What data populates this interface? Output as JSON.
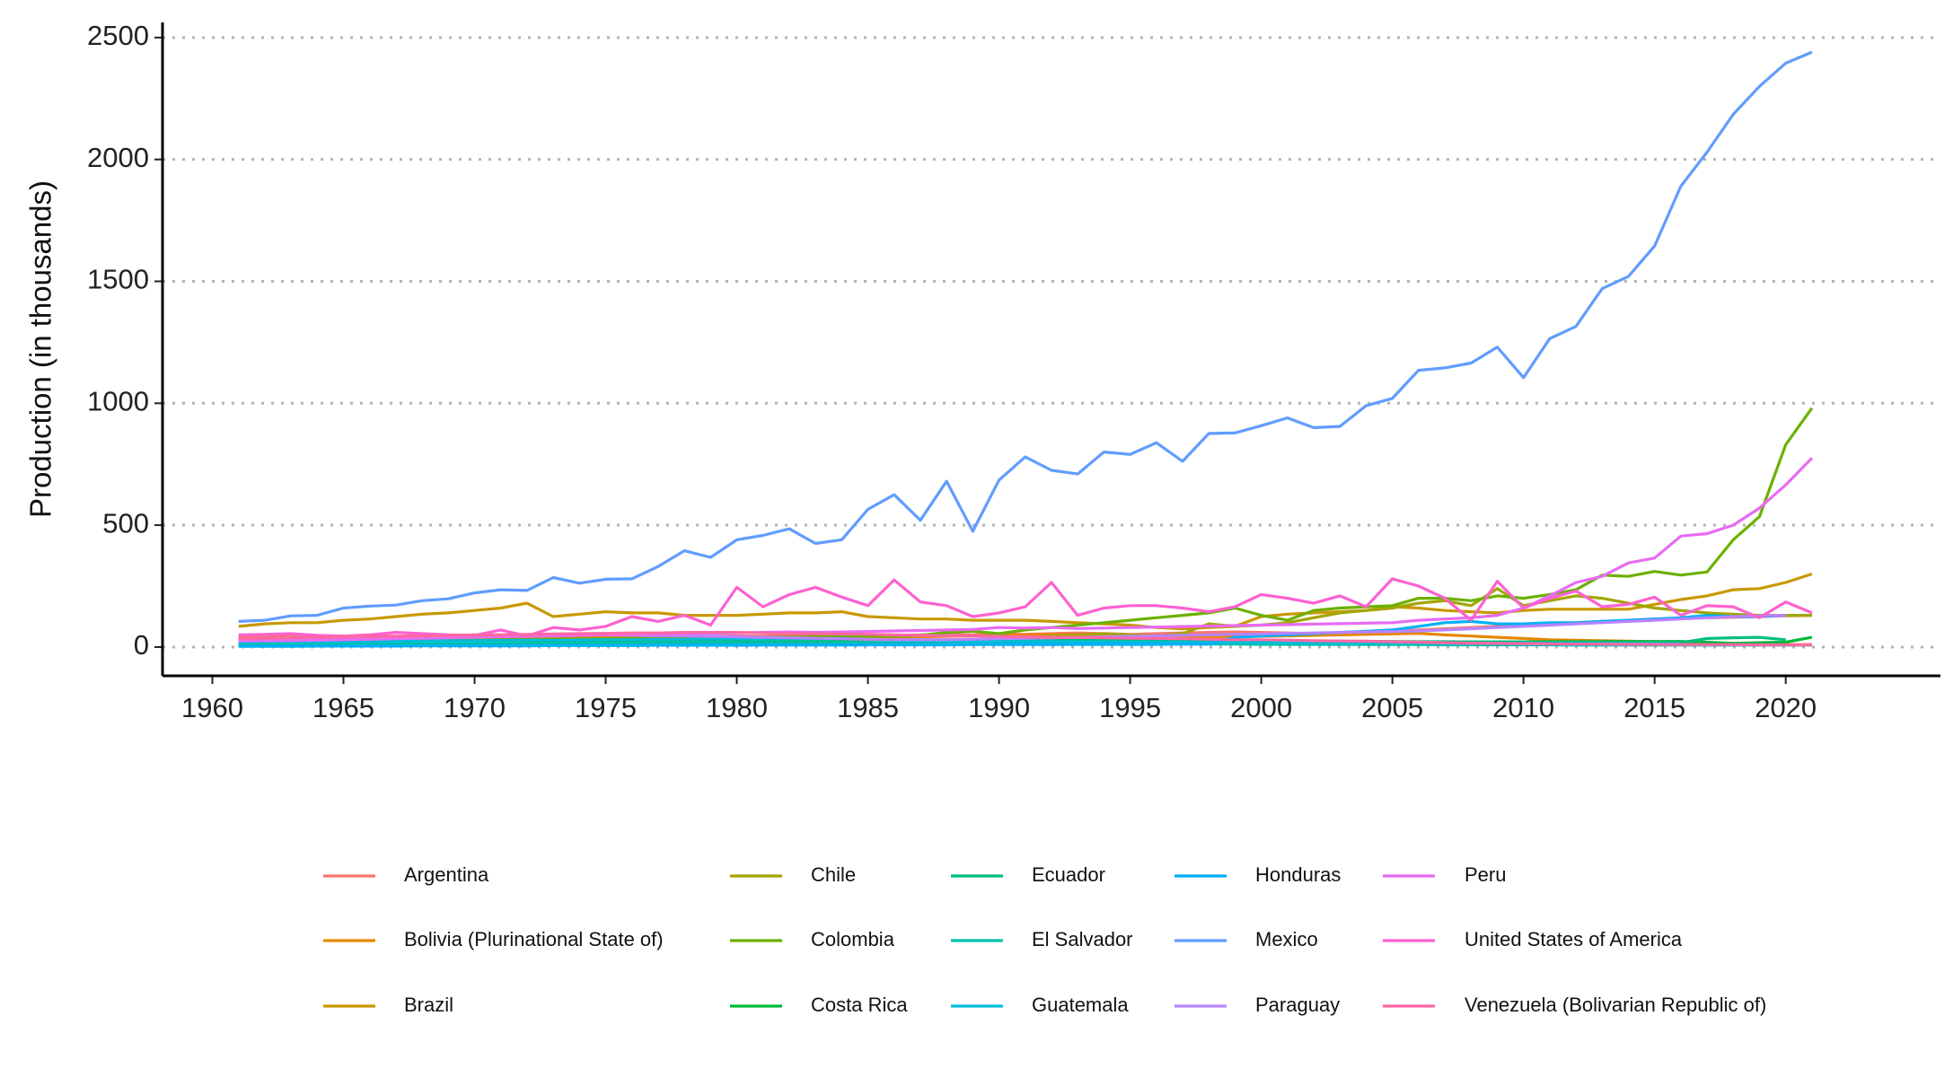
{
  "chart_data": {
    "type": "line",
    "y_label": "Production (in thousands)",
    "x": [
      1961,
      1962,
      1963,
      1964,
      1965,
      1966,
      1967,
      1968,
      1969,
      1970,
      1971,
      1972,
      1973,
      1974,
      1975,
      1976,
      1977,
      1978,
      1979,
      1980,
      1981,
      1982,
      1983,
      1984,
      1985,
      1986,
      1987,
      1988,
      1989,
      1990,
      1991,
      1992,
      1993,
      1994,
      1995,
      1996,
      1997,
      1998,
      1999,
      2000,
      2001,
      2002,
      2003,
      2004,
      2005,
      2006,
      2007,
      2008,
      2009,
      2010,
      2011,
      2012,
      2013,
      2014,
      2015,
      2016,
      2017,
      2018,
      2019,
      2020,
      2021
    ],
    "xlim": [
      1958.1,
      2025.9
    ],
    "xticks": [
      1960,
      1965,
      1970,
      1975,
      1980,
      1985,
      1990,
      1995,
      2000,
      2005,
      2010,
      2015,
      2020
    ],
    "ylim": [
      -118,
      2562
    ],
    "yticks": [
      0,
      500,
      1000,
      1500,
      2000,
      2500
    ],
    "grid": true,
    "legend": "bottom",
    "series": [
      {
        "name": "Argentina",
        "color": "#F8766D",
        "values": [
          40,
          42,
          45,
          40,
          38,
          40,
          42,
          44,
          40,
          45,
          48,
          42,
          40,
          44,
          46,
          42,
          40,
          42,
          44,
          46,
          45,
          48,
          50,
          46,
          44,
          48,
          50,
          52,
          50,
          55,
          52,
          55,
          58,
          55,
          52,
          55,
          58,
          60,
          62,
          60,
          58,
          55,
          60,
          62,
          65,
          70,
          75,
          80,
          85,
          90,
          95,
          100,
          105,
          110,
          115,
          118,
          120,
          122,
          125,
          128,
          130
        ]
      },
      {
        "name": "Bolivia (Plurinational State of)",
        "color": "#E58700",
        "values": [
          20,
          22,
          24,
          25,
          26,
          28,
          30,
          30,
          32,
          34,
          35,
          36,
          38,
          38,
          40,
          40,
          38,
          36,
          35,
          34,
          34,
          35,
          36,
          37,
          38,
          40,
          42,
          44,
          46,
          48,
          50,
          52,
          50,
          48,
          46,
          44,
          42,
          40,
          42,
          44,
          46,
          48,
          50,
          52,
          54,
          56,
          50,
          45,
          40,
          35,
          30,
          28,
          26,
          24,
          22,
          20,
          18,
          15,
          12,
          10,
          10
        ]
      },
      {
        "name": "Brazil",
        "color": "#C99800",
        "values": [
          85,
          95,
          100,
          100,
          110,
          115,
          125,
          135,
          140,
          150,
          160,
          180,
          125,
          135,
          145,
          140,
          140,
          130,
          130,
          130,
          135,
          140,
          140,
          145,
          125,
          120,
          115,
          115,
          110,
          110,
          110,
          105,
          100,
          95,
          90,
          80,
          75,
          80,
          85,
          125,
          135,
          140,
          145,
          150,
          165,
          160,
          150,
          145,
          140,
          150,
          155,
          155,
          155,
          155,
          175,
          195,
          210,
          235,
          240,
          265,
          300
        ]
      },
      {
        "name": "Chile",
        "color": "#A3A500",
        "values": [
          10,
          10,
          11,
          11,
          12,
          12,
          13,
          13,
          14,
          14,
          15,
          15,
          16,
          16,
          17,
          17,
          18,
          18,
          19,
          20,
          20,
          21,
          22,
          23,
          24,
          25,
          26,
          28,
          30,
          35,
          40,
          45,
          50,
          55,
          50,
          45,
          55,
          95,
          85,
          90,
          100,
          120,
          140,
          150,
          160,
          180,
          190,
          170,
          240,
          170,
          190,
          210,
          200,
          180,
          160,
          150,
          140,
          135,
          130,
          130,
          130
        ]
      },
      {
        "name": "Colombia",
        "color": "#6BB100",
        "values": [
          20,
          21,
          22,
          23,
          24,
          25,
          26,
          27,
          28,
          30,
          30,
          31,
          32,
          33,
          34,
          35,
          36,
          37,
          38,
          40,
          40,
          41,
          42,
          43,
          44,
          45,
          48,
          60,
          65,
          55,
          70,
          80,
          90,
          100,
          110,
          120,
          130,
          140,
          160,
          130,
          110,
          150,
          160,
          165,
          170,
          200,
          200,
          190,
          210,
          200,
          215,
          235,
          295,
          290,
          310,
          295,
          308,
          440,
          535,
          830,
          980
        ]
      },
      {
        "name": "Costa Rica",
        "color": "#00BA38",
        "values": [
          5,
          5,
          6,
          6,
          6,
          7,
          7,
          7,
          8,
          8,
          8,
          9,
          9,
          9,
          10,
          10,
          10,
          11,
          11,
          11,
          12,
          12,
          12,
          13,
          13,
          13,
          14,
          14,
          14,
          15,
          15,
          15,
          16,
          16,
          16,
          17,
          17,
          17,
          18,
          18,
          18,
          19,
          19,
          19,
          20,
          20,
          20,
          21,
          21,
          21,
          22,
          22,
          22,
          23,
          23,
          23,
          20,
          15,
          18,
          20,
          40
        ]
      },
      {
        "name": "Ecuador",
        "color": "#00BF7D",
        "values": [
          15,
          16,
          17,
          18,
          18,
          19,
          20,
          20,
          21,
          22,
          22,
          23,
          23,
          24,
          24,
          25,
          25,
          26,
          26,
          27,
          27,
          28,
          28,
          28,
          29,
          29,
          30,
          30,
          30,
          30,
          30,
          30,
          28,
          28,
          27,
          27,
          26,
          26,
          25,
          25,
          25,
          24,
          24,
          23,
          23,
          22,
          22,
          21,
          21,
          20,
          20,
          20,
          19,
          19,
          18,
          18,
          35,
          38,
          40,
          30,
          null
        ]
      },
      {
        "name": "El Salvador",
        "color": "#00C0AF",
        "values": [
          10,
          10,
          11,
          11,
          12,
          12,
          12,
          13,
          13,
          13,
          14,
          14,
          14,
          15,
          15,
          15,
          16,
          16,
          16,
          16,
          17,
          17,
          17,
          17,
          16,
          16,
          16,
          15,
          15,
          15,
          14,
          14,
          14,
          13,
          13,
          13,
          12,
          12,
          12,
          11,
          11,
          11,
          10,
          10,
          10,
          10,
          9,
          9,
          9,
          9,
          9,
          8,
          8,
          8,
          8,
          8,
          8,
          8,
          8,
          8,
          8
        ]
      },
      {
        "name": "Guatemala",
        "color": "#00BCD8",
        "values": [
          20,
          21,
          22,
          22,
          23,
          24,
          24,
          25,
          26,
          26,
          27,
          28,
          28,
          29,
          30,
          30,
          31,
          32,
          32,
          33,
          33,
          34,
          34,
          35,
          30,
          28,
          26,
          25,
          24,
          23,
          22,
          22,
          21,
          21,
          20,
          20,
          20,
          19,
          19,
          19,
          18,
          18,
          18,
          17,
          17,
          17,
          16,
          16,
          16,
          15,
          15,
          15,
          14,
          14,
          14,
          14,
          null,
          null,
          null,
          null,
          null
        ]
      },
      {
        "name": "Honduras",
        "color": "#00B0F6",
        "values": [
          3,
          3,
          3,
          4,
          4,
          4,
          4,
          5,
          5,
          5,
          5,
          5,
          6,
          6,
          6,
          6,
          7,
          7,
          7,
          7,
          8,
          8,
          8,
          8,
          9,
          9,
          9,
          9,
          10,
          10,
          10,
          10,
          11,
          11,
          11,
          11,
          12,
          12,
          40,
          45,
          50,
          55,
          60,
          65,
          70,
          85,
          100,
          105,
          95,
          95,
          100,
          100,
          105,
          110,
          115,
          120,
          130,
          125,
          125,
          130,
          null
        ]
      },
      {
        "name": "Mexico",
        "color": "#619CFF",
        "values": [
          105,
          110,
          128,
          130,
          160,
          168,
          172,
          190,
          198,
          222,
          235,
          232,
          285,
          262,
          278,
          280,
          330,
          395,
          368,
          440,
          458,
          485,
          425,
          440,
          565,
          625,
          520,
          680,
          475,
          685,
          780,
          725,
          710,
          800,
          790,
          838,
          762,
          876,
          878,
          908,
          940,
          900,
          905,
          990,
          1020,
          1135,
          1145,
          1165,
          1230,
          1105,
          1265,
          1315,
          1470,
          1520,
          1645,
          1890,
          2030,
          2185,
          2300,
          2395,
          2440
        ]
      },
      {
        "name": "Paraguay",
        "color": "#B983FF",
        "values": [
          30,
          32,
          34,
          35,
          36,
          38,
          40,
          42,
          44,
          45,
          46,
          48,
          50,
          50,
          50,
          48,
          46,
          45,
          44,
          42,
          40,
          38,
          36,
          34,
          32,
          30,
          30,
          30,
          32,
          34,
          36,
          38,
          40,
          42,
          44,
          46,
          48,
          50,
          52,
          54,
          56,
          58,
          60,
          62,
          64,
          66,
          70,
          75,
          80,
          85,
          90,
          95,
          100,
          105,
          110,
          115,
          120,
          125,
          128,
          130,
          null
        ]
      },
      {
        "name": "Peru",
        "color": "#E76BF3",
        "values": [
          25,
          26,
          27,
          28,
          30,
          32,
          34,
          36,
          38,
          40,
          42,
          44,
          46,
          48,
          50,
          50,
          52,
          54,
          56,
          58,
          60,
          62,
          60,
          62,
          64,
          66,
          68,
          70,
          72,
          80,
          78,
          80,
          76,
          78,
          80,
          82,
          84,
          86,
          88,
          90,
          92,
          94,
          96,
          98,
          100,
          110,
          115,
          120,
          130,
          160,
          210,
          265,
          290,
          345,
          365,
          455,
          465,
          500,
          570,
          665,
          775
        ]
      },
      {
        "name": "United States of America",
        "color": "#FD61D1",
        "values": [
          50,
          52,
          55,
          48,
          45,
          50,
          60,
          55,
          50,
          48,
          70,
          45,
          80,
          70,
          85,
          125,
          105,
          130,
          90,
          245,
          165,
          215,
          245,
          205,
          170,
          275,
          185,
          170,
          125,
          140,
          165,
          265,
          130,
          160,
          170,
          170,
          160,
          145,
          165,
          215,
          200,
          180,
          210,
          165,
          280,
          250,
          200,
          110,
          270,
          160,
          200,
          230,
          165,
          175,
          205,
          130,
          170,
          165,
          120,
          185,
          140
        ]
      },
      {
        "name": "Venezuela (Bolivarian Republic of)",
        "color": "#FF67A4",
        "values": [
          35,
          36,
          38,
          40,
          42,
          44,
          45,
          46,
          48,
          50,
          50,
          52,
          54,
          55,
          56,
          58,
          58,
          60,
          60,
          60,
          58,
          56,
          55,
          54,
          52,
          50,
          48,
          46,
          45,
          44,
          42,
          40,
          40,
          38,
          36,
          35,
          34,
          32,
          30,
          30,
          28,
          26,
          25,
          24,
          22,
          20,
          18,
          16,
          15,
          14,
          13,
          12,
          12,
          11,
          11,
          10,
          10,
          10,
          9,
          9,
          9
        ]
      }
    ]
  }
}
